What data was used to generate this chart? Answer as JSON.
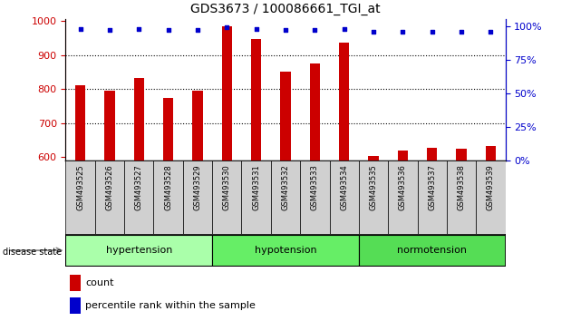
{
  "title": "GDS3673 / 100086661_TGI_at",
  "samples": [
    "GSM493525",
    "GSM493526",
    "GSM493527",
    "GSM493528",
    "GSM493529",
    "GSM493530",
    "GSM493531",
    "GSM493532",
    "GSM493533",
    "GSM493534",
    "GSM493535",
    "GSM493536",
    "GSM493537",
    "GSM493538",
    "GSM493539"
  ],
  "counts": [
    810,
    795,
    833,
    775,
    795,
    985,
    947,
    850,
    875,
    937,
    602,
    618,
    628,
    625,
    633
  ],
  "percentiles": [
    98,
    97,
    98,
    97,
    97,
    99,
    98,
    97,
    97,
    98,
    96,
    96,
    96,
    96,
    96
  ],
  "ylim_left": [
    590,
    1005
  ],
  "yticks_left": [
    600,
    700,
    800,
    900,
    1000
  ],
  "ylim_right": [
    0,
    105
  ],
  "yticks_right": [
    0,
    25,
    50,
    75,
    100
  ],
  "bar_color": "#cc0000",
  "scatter_color": "#0000cc",
  "tick_label_color": "#cc0000",
  "right_tick_color": "#0000cc",
  "title_fontsize": 10,
  "bar_width": 0.35,
  "grid_yticks": [
    700,
    800,
    900
  ],
  "group_defs": [
    {
      "name": "hypertension",
      "start": 0,
      "end": 4,
      "color": "#aaffaa"
    },
    {
      "name": "hypotension",
      "start": 5,
      "end": 9,
      "color": "#66ee66"
    },
    {
      "name": "normotension",
      "start": 10,
      "end": 14,
      "color": "#55dd55"
    }
  ],
  "label_box_color": "#d0d0d0",
  "disease_state_label": "disease state",
  "legend_labels": [
    "count",
    "percentile rank within the sample"
  ],
  "fig_width": 6.3,
  "fig_height": 3.54
}
